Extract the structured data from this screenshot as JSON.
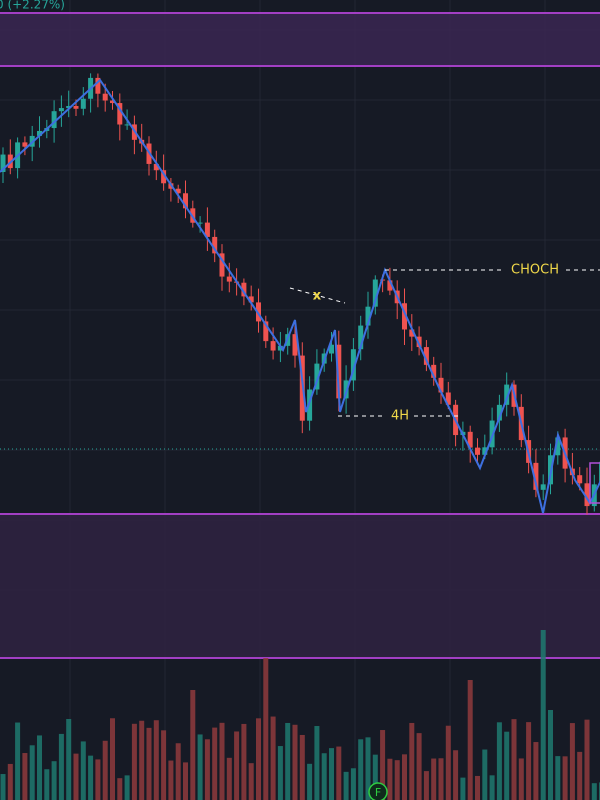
{
  "header": {
    "change_label": "0 (+2.27%)"
  },
  "annotations": {
    "choch": "CHOCH",
    "h4": "4H",
    "x": "x"
  },
  "marker": {
    "label": "F"
  }
}
